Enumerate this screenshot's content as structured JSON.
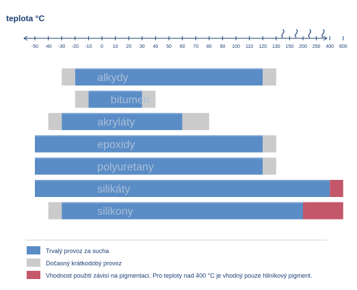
{
  "chart_data": {
    "type": "bar",
    "title": "teplota °C",
    "axis_ticks": [
      "-50",
      "-40",
      "-30",
      "-20",
      "-10",
      "0",
      "10",
      "20",
      "30",
      "40",
      "50",
      "60",
      "70",
      "80",
      "90",
      "100",
      "110",
      "120",
      "130",
      "150",
      "200",
      "250",
      "400",
      "600"
    ],
    "categories": [
      "alkydy",
      "bitumen",
      "akryláty",
      "epoxidy",
      "polyuretany",
      "silikáty",
      "silikony"
    ],
    "series": [
      {
        "name": "Trvalý provoz za sucha",
        "ranges": [
          {
            "category": "alkydy",
            "from": "-20",
            "to": "120"
          },
          {
            "category": "bitumen",
            "from": "-10",
            "to": "30"
          },
          {
            "category": "akryláty",
            "from": "-30",
            "to": "60"
          },
          {
            "category": "epoxidy",
            "from": "-50",
            "to": "120"
          },
          {
            "category": "polyuretany",
            "from": "-50",
            "to": "120"
          },
          {
            "category": "silikáty",
            "from": "-50",
            "to": "400"
          },
          {
            "category": "silikony",
            "from": "-30",
            "to": "200"
          }
        ]
      },
      {
        "name": "Dočasný krátkodobý provoz",
        "ranges": [
          {
            "category": "alkydy",
            "from": "-30",
            "to": "-20"
          },
          {
            "category": "alkydy",
            "from": "120",
            "to": "130"
          },
          {
            "category": "bitumen",
            "from": "-20",
            "to": "-10"
          },
          {
            "category": "bitumen",
            "from": "30",
            "to": "40"
          },
          {
            "category": "akryláty",
            "from": "-40",
            "to": "-30"
          },
          {
            "category": "akryláty",
            "from": "60",
            "to": "80"
          },
          {
            "category": "epoxidy",
            "from": "120",
            "to": "130"
          },
          {
            "category": "polyuretany",
            "from": "120",
            "to": "130"
          },
          {
            "category": "silikony",
            "from": "-40",
            "to": "-30"
          }
        ]
      },
      {
        "name": "Vhodnost použití závisí na pigmentaci. Pro teploty nad 400 °C je vhodný pouze hliníkový pigment.",
        "ranges": [
          {
            "category": "silikáty",
            "from": "400",
            "to": "600"
          },
          {
            "category": "silikony",
            "from": "200",
            "to": "600"
          }
        ]
      }
    ],
    "axis_breaks_after": [
      "130",
      "150",
      "200",
      "250"
    ],
    "grid": false,
    "legend_position": "bottom"
  },
  "colors": {
    "permanent": "#5a8cc6",
    "temporary": "#cbcbcb",
    "pigment": "#c4586a",
    "axis": "#1c3f75",
    "label": "#a9bfd9"
  }
}
